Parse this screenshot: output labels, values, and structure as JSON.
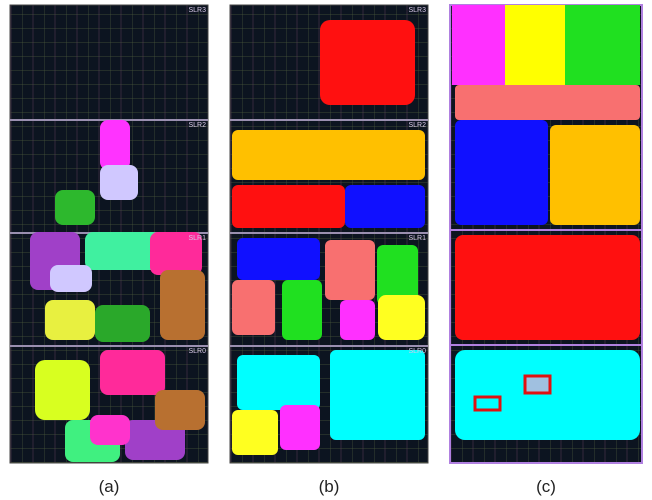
{
  "panels": [
    {
      "caption": "(a)",
      "regions": [
        "SLR3",
        "SLR2",
        "SLR1",
        "SLR0"
      ]
    },
    {
      "caption": "(b)",
      "regions": [
        "SLR3",
        "SLR2",
        "SLR1",
        "SLR0"
      ]
    },
    {
      "caption": "(c)"
    }
  ]
}
